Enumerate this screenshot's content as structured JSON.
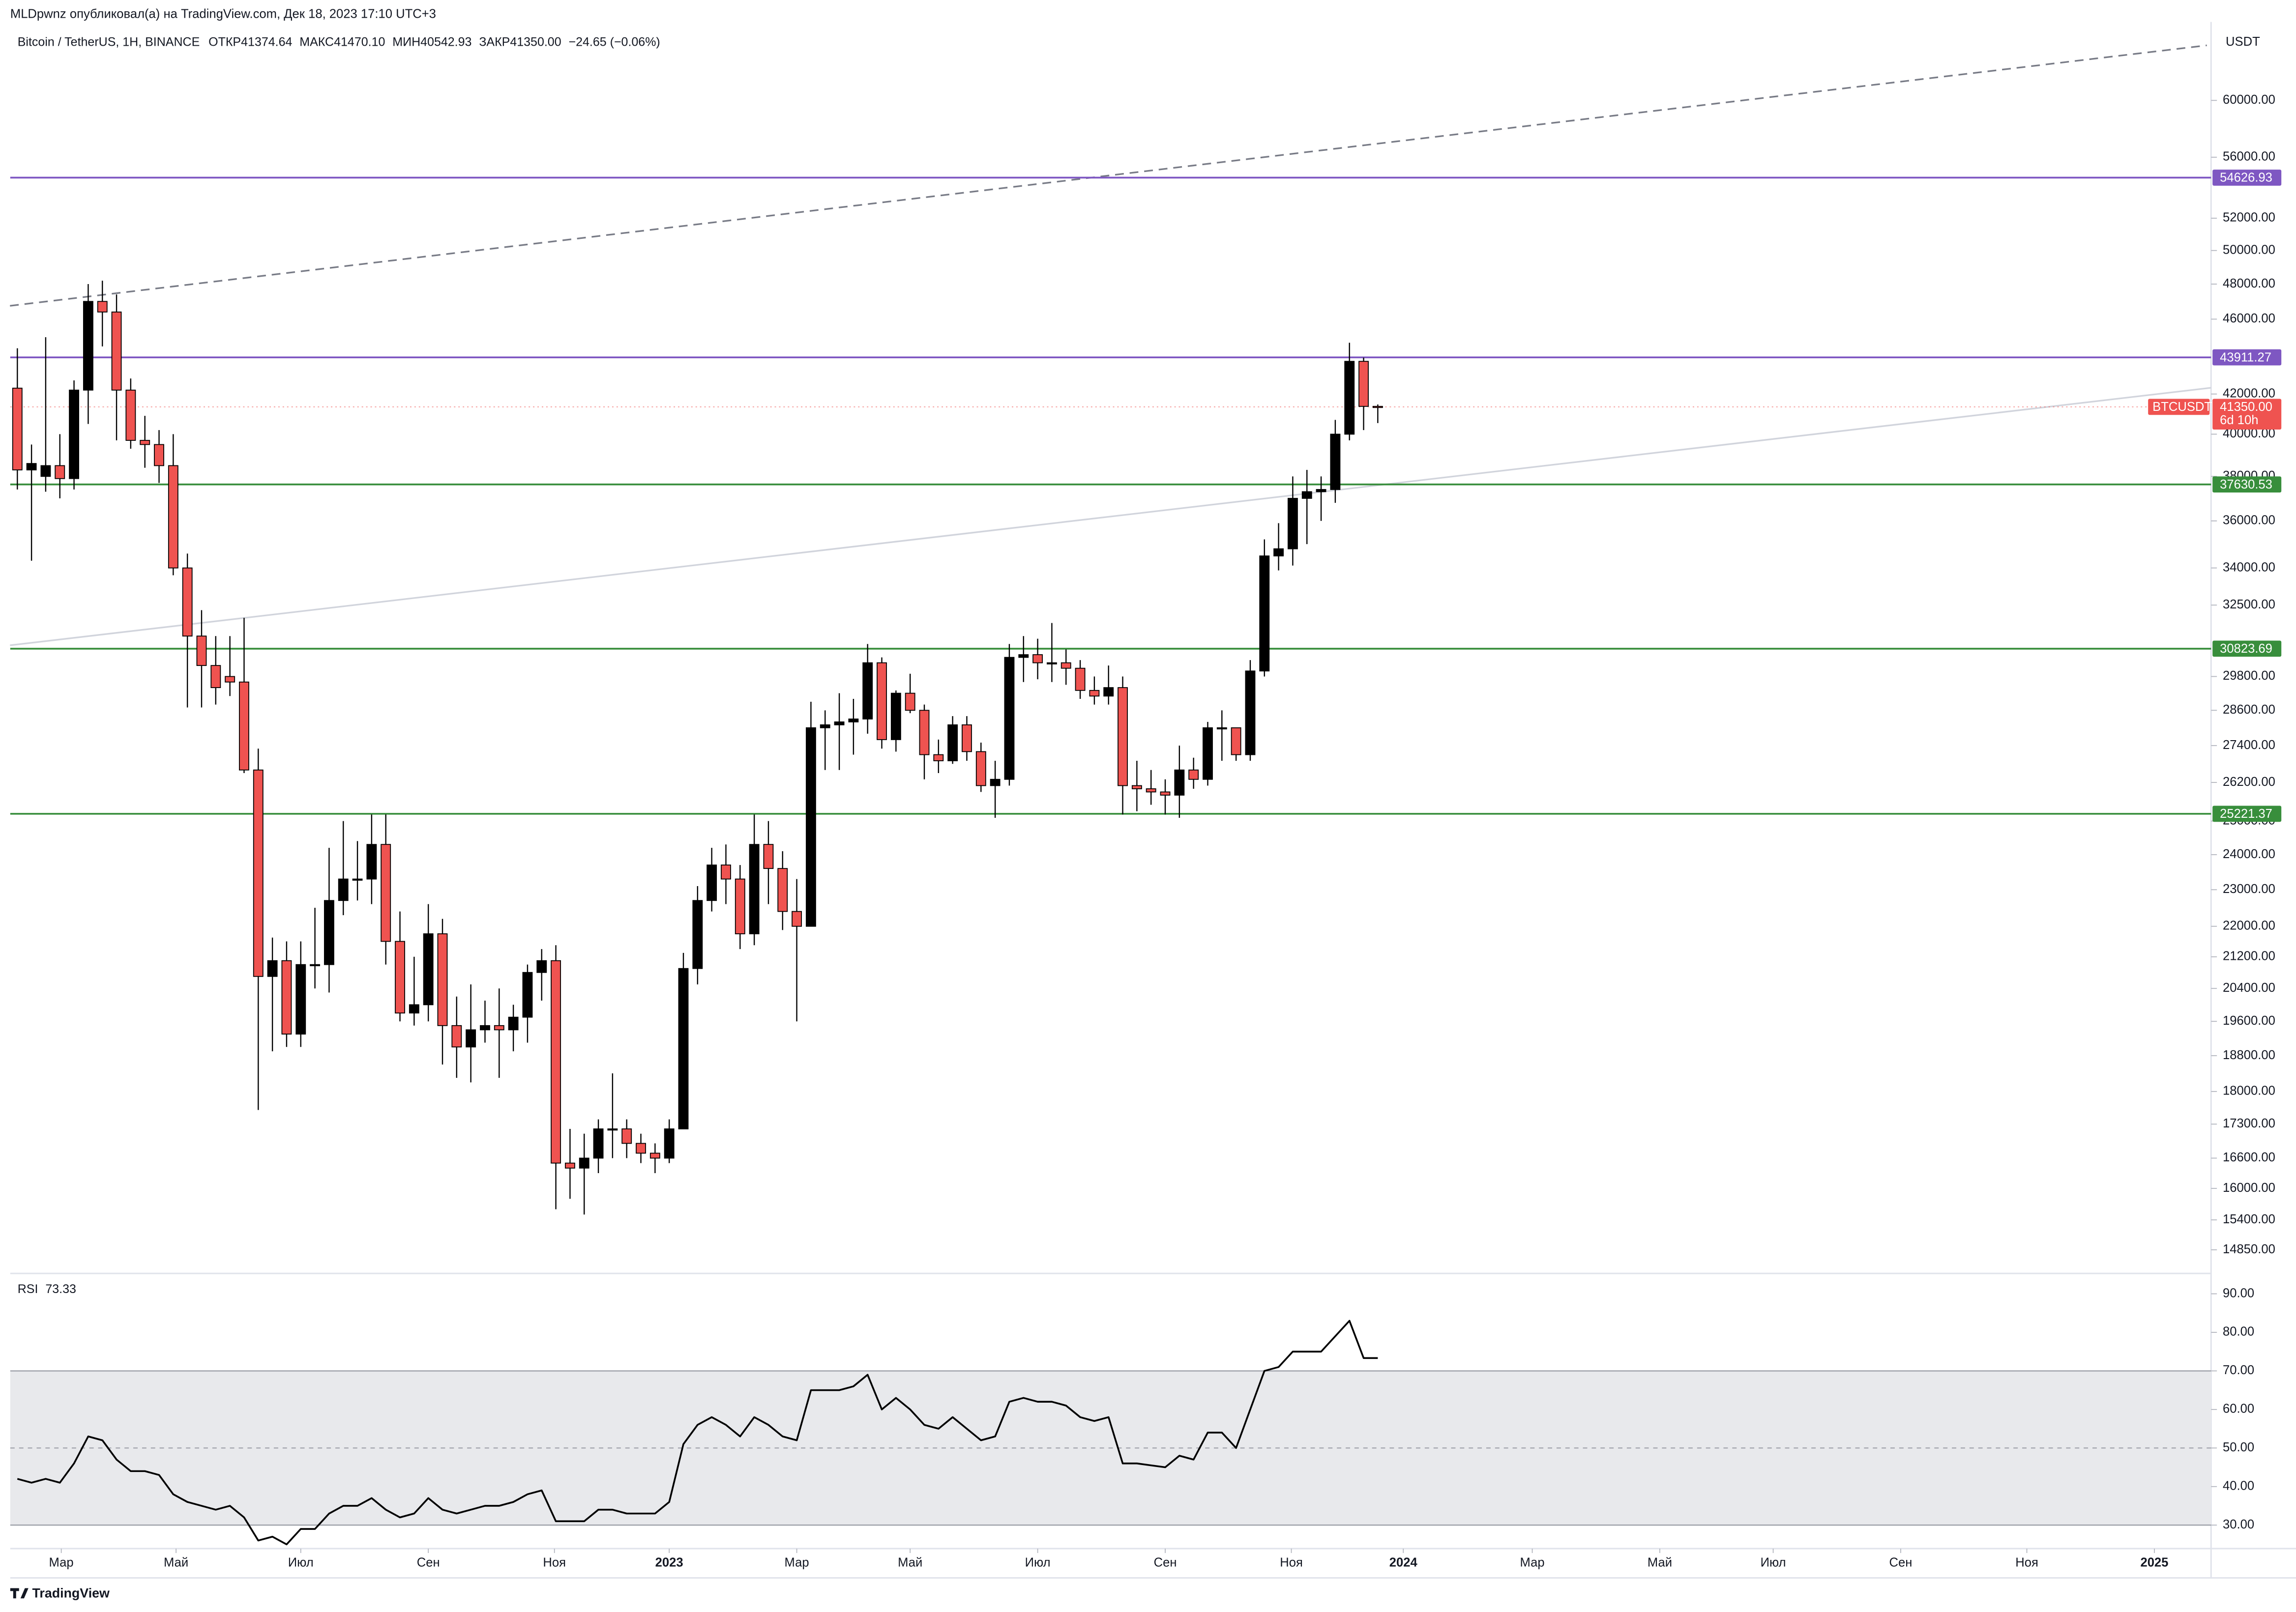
{
  "header": {
    "publisher": "MLDpwnz опубликовал(а) на TradingView.com, Дек 18, 2023 17:10 UTC+3",
    "brand": "TradingView"
  },
  "chart_data": [
    {
      "type": "candlestick",
      "symbol_line": "Bitcoin / TetherUS, 1H, BINANCE",
      "ohlc_labels": [
        "ОТКР",
        "МАКС",
        "МИН",
        "ЗАКР"
      ],
      "ohlc_value_labels": [
        "41374.64",
        "41470.10",
        "40542.93",
        "41350.00"
      ],
      "change": "−24.65 (−0.06%)",
      "currency": "USDT",
      "log_scale": true,
      "grid": false,
      "ylim": [
        14430,
        66000
      ],
      "yticks": [
        {
          "value": 60000,
          "label": "60000.00"
        },
        {
          "value": 56000,
          "label": "56000.00"
        },
        {
          "value": 52000,
          "label": "52000.00"
        },
        {
          "value": 50000,
          "label": "50000.00"
        },
        {
          "value": 48000,
          "label": "48000.00"
        },
        {
          "value": 46000,
          "label": "46000.00"
        },
        {
          "value": 42000,
          "label": "42000.00"
        },
        {
          "value": 40000,
          "label": "40000.00"
        },
        {
          "value": 38000,
          "label": "38000.00"
        },
        {
          "value": 36000,
          "label": "36000.00"
        },
        {
          "value": 34000,
          "label": "34000.00"
        },
        {
          "value": 32500,
          "label": "32500.00"
        },
        {
          "value": 29800,
          "label": "29800.00"
        },
        {
          "value": 28600,
          "label": "28600.00"
        },
        {
          "value": 27400,
          "label": "27400.00"
        },
        {
          "value": 26200,
          "label": "26200.00"
        },
        {
          "value": 25000,
          "label": "25000.00"
        },
        {
          "value": 24000,
          "label": "24000.00"
        },
        {
          "value": 23000,
          "label": "23000.00"
        },
        {
          "value": 22000,
          "label": "22000.00"
        },
        {
          "value": 21200,
          "label": "21200.00"
        },
        {
          "value": 20400,
          "label": "20400.00"
        },
        {
          "value": 19600,
          "label": "19600.00"
        },
        {
          "value": 18800,
          "label": "18800.00"
        },
        {
          "value": 18000,
          "label": "18000.00"
        },
        {
          "value": 17300,
          "label": "17300.00"
        },
        {
          "value": 16600,
          "label": "16600.00"
        },
        {
          "value": 16000,
          "label": "16000.00"
        },
        {
          "value": 15400,
          "label": "15400.00"
        },
        {
          "value": 14850,
          "label": "14850.00"
        }
      ],
      "xlim": [
        -0.5,
        154.8
      ],
      "xticks": [
        {
          "value": 3.1,
          "label": "Мар"
        },
        {
          "value": 11.2,
          "label": "Май"
        },
        {
          "value": 20.0,
          "label": "Июл"
        },
        {
          "value": 29.0,
          "label": "Сен"
        },
        {
          "value": 37.9,
          "label": "Ноя"
        },
        {
          "value": 46.0,
          "label": "2023"
        },
        {
          "value": 55.0,
          "label": "Мар"
        },
        {
          "value": 63.0,
          "label": "Май"
        },
        {
          "value": 72.0,
          "label": "Июл"
        },
        {
          "value": 81.0,
          "label": "Сен"
        },
        {
          "value": 89.9,
          "label": "Ноя"
        },
        {
          "value": 97.8,
          "label": "2024"
        },
        {
          "value": 106.9,
          "label": "Мар"
        },
        {
          "value": 115.9,
          "label": "Май"
        },
        {
          "value": 123.9,
          "label": "Июл"
        },
        {
          "value": 132.9,
          "label": "Сен"
        },
        {
          "value": 141.8,
          "label": "Ноя"
        },
        {
          "value": 150.8,
          "label": "2025"
        }
      ],
      "series": [
        {
          "name": "BTCUSDT",
          "color_up": "#000000",
          "color_down": "#ef5350",
          "open": [
            42300,
            38300,
            38000,
            38500,
            37900,
            42200,
            47000,
            46400,
            42200,
            39700,
            39500,
            38500,
            34000,
            31300,
            30200,
            29800,
            29600,
            26600,
            20700,
            21100,
            19300,
            21000,
            21000,
            22700,
            23300,
            23300,
            24300,
            21600,
            19800,
            20000,
            21800,
            19500,
            19000,
            19400,
            19500,
            19400,
            19700,
            20800,
            21100,
            16500,
            16400,
            16600,
            17200,
            17200,
            16900,
            16700,
            16600,
            17200,
            20900,
            22700,
            23700,
            23300,
            21800,
            24300,
            23600,
            22400,
            22000,
            28000,
            28100,
            28200,
            28300,
            30300,
            27600,
            29200,
            28600,
            27100,
            26900,
            28100,
            27200,
            26100,
            26300,
            30500,
            30600,
            30300,
            30300,
            30100,
            29300,
            29100,
            29400,
            26100,
            26000,
            25900,
            25800,
            26600,
            26300,
            28000,
            28000,
            27100,
            30000,
            34500,
            34800,
            37000,
            37300,
            37400,
            40000,
            43700,
            41374.64
          ],
          "high": [
            44400,
            39500,
            45000,
            40000,
            42700,
            48000,
            48200,
            47400,
            42800,
            40900,
            40200,
            40000,
            34600,
            32300,
            31300,
            31300,
            32000,
            27300,
            21700,
            21600,
            21600,
            22500,
            24200,
            25000,
            24400,
            25200,
            25200,
            22400,
            21200,
            22600,
            22200,
            20200,
            20500,
            20100,
            20400,
            20000,
            21000,
            21400,
            21500,
            17200,
            17100,
            17400,
            18400,
            17400,
            17100,
            16900,
            17400,
            21300,
            23100,
            24200,
            24300,
            23700,
            25200,
            25000,
            24100,
            23300,
            28900,
            28600,
            29200,
            29000,
            31000,
            30500,
            29300,
            29900,
            28800,
            27600,
            28400,
            28400,
            27500,
            26900,
            31000,
            31300,
            31200,
            31800,
            30800,
            30400,
            29800,
            30200,
            29800,
            26900,
            26600,
            26300,
            27400,
            27000,
            28200,
            28600,
            28000,
            30400,
            35200,
            35900,
            38000,
            38300,
            38000,
            40700,
            44700,
            43900,
            41470.1
          ],
          "low": [
            37400,
            34300,
            37300,
            37000,
            37400,
            40500,
            44500,
            39700,
            39300,
            38400,
            37700,
            33700,
            28700,
            28700,
            28800,
            29100,
            26500,
            17600,
            18900,
            19000,
            19000,
            20400,
            20300,
            22300,
            22700,
            22600,
            21000,
            19600,
            19500,
            19600,
            18600,
            18300,
            18200,
            19100,
            18300,
            18900,
            19100,
            20100,
            15600,
            15800,
            15500,
            16300,
            16600,
            16600,
            16500,
            16300,
            16500,
            17200,
            20500,
            22400,
            22600,
            21400,
            21500,
            22600,
            21900,
            19600,
            22000,
            26600,
            26600,
            27100,
            27800,
            27300,
            27200,
            28500,
            26300,
            26500,
            26800,
            26900,
            25900,
            25100,
            26100,
            29600,
            29700,
            29600,
            29500,
            29000,
            28800,
            28800,
            25200,
            25300,
            25500,
            25200,
            25100,
            26000,
            26100,
            26900,
            26900,
            26900,
            29800,
            33900,
            34100,
            35000,
            36000,
            36800,
            39700,
            40200,
            40542.93
          ],
          "close": [
            38300,
            38600,
            38500,
            37900,
            42200,
            47000,
            46400,
            42200,
            39700,
            39500,
            38500,
            34000,
            31300,
            30200,
            29400,
            29600,
            26600,
            20700,
            21100,
            19300,
            21000,
            21000,
            22700,
            23300,
            23300,
            24300,
            21600,
            19800,
            20000,
            21800,
            19500,
            19000,
            19400,
            19500,
            19400,
            19700,
            20800,
            21100,
            16500,
            16400,
            16600,
            17200,
            17200,
            16900,
            16700,
            16600,
            17200,
            20900,
            22700,
            23700,
            23300,
            21800,
            24300,
            23600,
            22400,
            22000,
            28000,
            28100,
            28200,
            28300,
            30300,
            27600,
            29200,
            28600,
            27100,
            26900,
            28100,
            27200,
            26100,
            26300,
            30500,
            30600,
            30300,
            30300,
            30100,
            29300,
            29100,
            29400,
            26100,
            26000,
            25900,
            25800,
            26600,
            26300,
            28000,
            28000,
            27100,
            30000,
            34500,
            34800,
            37000,
            37300,
            37400,
            40000,
            43700,
            41374.64,
            41350.0
          ]
        }
      ],
      "hlines": [
        {
          "value": 54626.93,
          "label": "54626.93",
          "color": "#7e57c2"
        },
        {
          "value": 43911.27,
          "label": "43911.27",
          "color": "#7e57c2"
        },
        {
          "value": 37630.53,
          "label": "37630.53",
          "color": "#388e3c"
        },
        {
          "value": 30823.69,
          "label": "30823.69",
          "color": "#388e3c"
        },
        {
          "value": 25221.37,
          "label": "25221.37",
          "color": "#388e3c"
        }
      ],
      "trendlines": [
        {
          "style": "dashed",
          "color": "#787b86",
          "points": [
            [
              -0.52,
              46750
            ],
            [
              154.5,
              64150
            ]
          ]
        },
        {
          "style": "solid",
          "color": "#d1d4dc",
          "points": [
            [
              -0.52,
              30950
            ],
            [
              154.8,
              42320
            ]
          ]
        }
      ],
      "last_price": {
        "value": 41350,
        "label": "41350.00",
        "countdown": "6d 10h",
        "name": "BTCUSDT",
        "color": "#ef5350"
      }
    },
    {
      "type": "line",
      "title": "RSI",
      "ylim": [
        23.9,
        94.9
      ],
      "yticks": [
        {
          "value": 90,
          "label": "90.00"
        },
        {
          "value": 80,
          "label": "80.00"
        },
        {
          "value": 70,
          "label": "70.00"
        },
        {
          "value": 60,
          "label": "60.00"
        },
        {
          "value": 50,
          "label": "50.00"
        },
        {
          "value": 40,
          "label": "40.00"
        },
        {
          "value": 30,
          "label": "30.00"
        }
      ],
      "band": [
        30,
        70
      ],
      "band_color": "#e8e9ec",
      "midline": 50,
      "series": [
        {
          "name": "RSI",
          "color": "#000000",
          "values": [
            42,
            41,
            42,
            41,
            46,
            53,
            52,
            47,
            44,
            44,
            43,
            38,
            36,
            35,
            34,
            35,
            32,
            26,
            27,
            25,
            29,
            29,
            33,
            35,
            35,
            37,
            34,
            32,
            33,
            37,
            34,
            33,
            34,
            35,
            35,
            36,
            38,
            39,
            31,
            31,
            31,
            34,
            34,
            33,
            33,
            33,
            36,
            51,
            56,
            58,
            56,
            53,
            58,
            56,
            53,
            52,
            65,
            65,
            65,
            66,
            69,
            60,
            63,
            60,
            56,
            55,
            58,
            55,
            52,
            53,
            62,
            63,
            62,
            62,
            61,
            58,
            57,
            58,
            46,
            46,
            45.5,
            45,
            48,
            47,
            54,
            54,
            50,
            60,
            70,
            71,
            75,
            75,
            75,
            79,
            83,
            73.33,
            73.33
          ]
        }
      ]
    }
  ]
}
